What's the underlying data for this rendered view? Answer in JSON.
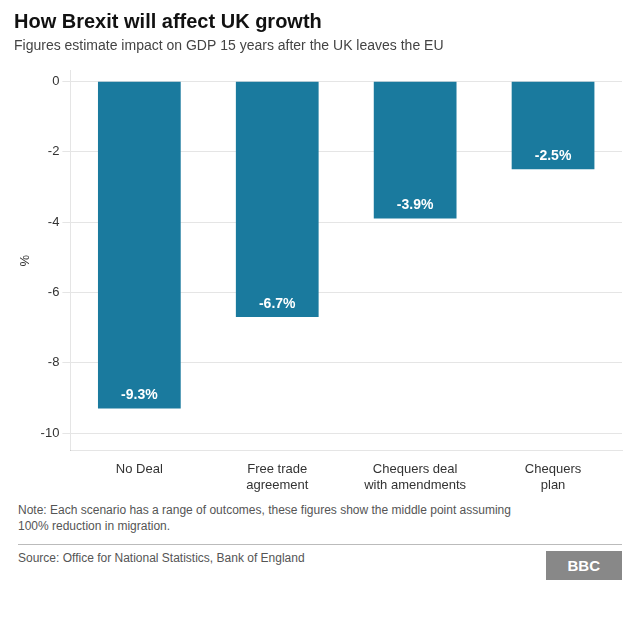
{
  "chart_data": {
    "type": "bar",
    "title": "How Brexit will affect UK growth",
    "subtitle": "Figures estimate impact on GDP 15 years after the UK leaves the EU",
    "categories": [
      "No Deal",
      "Free trade\nagreement",
      "Chequers deal\nwith amendments",
      "Chequers\nplan"
    ],
    "values": [
      -9.3,
      -6.7,
      -3.9,
      -2.5
    ],
    "value_labels": [
      "-9.3%",
      "-6.7%",
      "-3.9%",
      "-2.5%"
    ],
    "data_labels": true,
    "color": "#1a7a9e",
    "ylim": [
      -10.5,
      0.3
    ],
    "yticks": [
      0,
      -2,
      -4,
      -6,
      -8,
      -10
    ],
    "ylabel": "%",
    "grid": true,
    "note": "Note: Each scenario has a range of outcomes, these figures show the middle point assuming\n100% reduction in migration.",
    "source": "Source: Office for National Statistics, Bank of England",
    "annotations": [
      "BBC"
    ]
  }
}
